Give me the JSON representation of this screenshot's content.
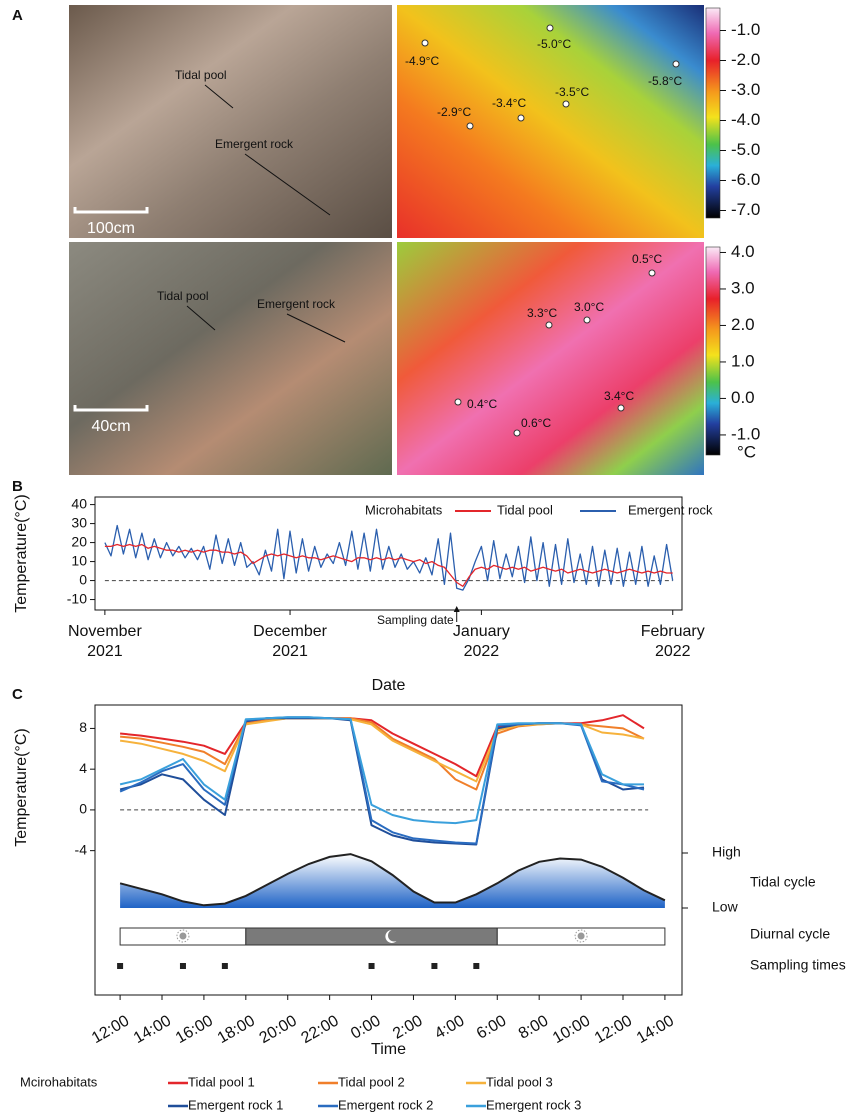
{
  "panel_a": {
    "label": "A",
    "photo_top": {
      "labels": [
        "Tidal pool",
        "Emergent rock"
      ],
      "scale": "100cm"
    },
    "thermal_top": {
      "points": [
        "-4.9°C",
        "-5.0°C",
        "-5.8°C",
        "-2.9°C",
        "-3.4°C",
        "-3.5°C"
      ],
      "colorbar": {
        "lim": [
          -7.25,
          -0.25
        ],
        "ticks": [
          {
            "value": -1,
            "label": "-1.0"
          },
          {
            "value": -2,
            "label": "-2.0"
          },
          {
            "value": -3,
            "label": "-3.0"
          },
          {
            "value": -4,
            "label": "-4.0"
          },
          {
            "value": -5,
            "label": "-5.0"
          },
          {
            "value": -6,
            "label": "-6.0"
          },
          {
            "value": -7,
            "label": "-7.0"
          }
        ]
      }
    },
    "photo_bottom": {
      "labels": [
        "Tidal pool",
        "Emergent rock"
      ],
      "scale": "40cm"
    },
    "thermal_bottom": {
      "points": [
        "0.5°C",
        "3.3°C",
        "3.0°C",
        "0.4°C",
        "0.6°C",
        "3.4°C"
      ],
      "colorbar": {
        "lim": [
          -1.55,
          4.15
        ],
        "unit": "°C",
        "ticks": [
          {
            "value": 4,
            "label": "4.0"
          },
          {
            "value": 3,
            "label": "3.0"
          },
          {
            "value": 2,
            "label": "2.0"
          },
          {
            "value": 1,
            "label": "1.0"
          },
          {
            "value": 0,
            "label": "0.0"
          },
          {
            "value": -1,
            "label": "-1.0"
          }
        ]
      }
    }
  },
  "chart_data": [
    {
      "type": "line",
      "panel": "B",
      "xlabel": "Date",
      "ylabel": "Temperature(°C)",
      "xlim": [
        -1.6,
        93.5
      ],
      "ylim": [
        -15.5,
        44
      ],
      "xticks": [
        {
          "value": 0,
          "label": "November 2021"
        },
        {
          "value": 30,
          "label": "December 2021"
        },
        {
          "value": 61,
          "label": "January 2022"
        },
        {
          "value": 92,
          "label": "February 2022"
        }
      ],
      "yticks": [
        -10,
        0,
        10,
        20,
        30,
        40
      ],
      "reference_line": 0,
      "annotation": {
        "text": "Sampling date",
        "x": 57
      },
      "legend_title": "Microhabitats",
      "legend": "top-right",
      "x": [
        0,
        1,
        2,
        3,
        4,
        5,
        6,
        7,
        8,
        9,
        10,
        11,
        12,
        13,
        14,
        15,
        16,
        17,
        18,
        19,
        20,
        21,
        22,
        23,
        24,
        25,
        26,
        27,
        28,
        29,
        30,
        31,
        32,
        33,
        34,
        35,
        36,
        37,
        38,
        39,
        40,
        41,
        42,
        43,
        44,
        45,
        46,
        47,
        48,
        49,
        50,
        51,
        52,
        53,
        54,
        55,
        56,
        57,
        58,
        59,
        60,
        61,
        62,
        63,
        64,
        65,
        66,
        67,
        68,
        69,
        70,
        71,
        72,
        73,
        74,
        75,
        76,
        77,
        78,
        79,
        80,
        81,
        82,
        83,
        84,
        85,
        86,
        87,
        88,
        89,
        90,
        91,
        92
      ],
      "series": [
        {
          "name": "Emergent rock",
          "color": "#2b5fae",
          "values": [
            20,
            13,
            29,
            14,
            27,
            12,
            25,
            11,
            22,
            12,
            20,
            13,
            18,
            12,
            17,
            11,
            18,
            6,
            24,
            9,
            22,
            8,
            20,
            7,
            10,
            3,
            16,
            5,
            27,
            1,
            26,
            4,
            22,
            5,
            18,
            7,
            14,
            9,
            20,
            8,
            26,
            6,
            25,
            5,
            27,
            6,
            18,
            7,
            14,
            6,
            10,
            4,
            12,
            3,
            22,
            -2,
            25,
            -4,
            -5,
            1,
            10,
            18,
            0,
            21,
            1,
            14,
            2,
            18,
            -1,
            23,
            0,
            20,
            -3,
            19,
            -2,
            22,
            -1,
            14,
            -2,
            18,
            -3,
            16,
            -2,
            17,
            -3,
            15,
            -2,
            18,
            -3,
            13,
            -2,
            19,
            0
          ]
        },
        {
          "name": "Tidal pool",
          "color": "#e3262b",
          "values": [
            18,
            18,
            19,
            18,
            19,
            18,
            19,
            17,
            18,
            17,
            16,
            16,
            15,
            16,
            15,
            16,
            15,
            16,
            16,
            15,
            15,
            14,
            15,
            13,
            9,
            11,
            13,
            14,
            13,
            14,
            13,
            12,
            13,
            12,
            12,
            11,
            12,
            13,
            12,
            11,
            10,
            12,
            12,
            11,
            12,
            11,
            12,
            11,
            12,
            11,
            10,
            11,
            9,
            10,
            8,
            7,
            3,
            -1,
            -3,
            2,
            6,
            7,
            6,
            8,
            7,
            6,
            7,
            6,
            7,
            5,
            6,
            7,
            6,
            5,
            6,
            4,
            5,
            6,
            5,
            4,
            5,
            6,
            5,
            4,
            5,
            6,
            5,
            4,
            5,
            4,
            5,
            4,
            4
          ]
        }
      ]
    },
    {
      "type": "line",
      "panel": "C",
      "xlabel": "Time",
      "ylabel": "Temperature(°C)",
      "xlim": [
        -0.1,
        26.1
      ],
      "ylim": [
        -5.9,
        10.3
      ],
      "xticks": [
        {
          "value": 0,
          "label": "12:00"
        },
        {
          "value": 2,
          "label": "14:00"
        },
        {
          "value": 4,
          "label": "16:00"
        },
        {
          "value": 6,
          "label": "18:00"
        },
        {
          "value": 8,
          "label": "20:00"
        },
        {
          "value": 10,
          "label": "22:00"
        },
        {
          "value": 12,
          "label": "0:00"
        },
        {
          "value": 14,
          "label": "2:00"
        },
        {
          "value": 16,
          "label": "4:00"
        },
        {
          "value": 18,
          "label": "6:00"
        },
        {
          "value": 20,
          "label": "8:00"
        },
        {
          "value": 22,
          "label": "10:00"
        },
        {
          "value": 24,
          "label": "12:00"
        },
        {
          "value": 26,
          "label": "14:00"
        }
      ],
      "yticks": [
        -4,
        0,
        4,
        8
      ],
      "reference_line": 0,
      "legend_title": "Mcirohabitats",
      "legend": "bottom",
      "x": [
        0,
        1,
        2,
        3,
        4,
        5,
        6,
        7,
        8,
        9,
        10,
        11,
        12,
        13,
        14,
        15,
        16,
        17,
        18,
        19,
        20,
        21,
        22,
        23,
        24,
        25,
        26
      ],
      "series": [
        {
          "name": "Tidal pool 1",
          "color": "#e3262b",
          "values": [
            7.5,
            7.3,
            7.0,
            6.7,
            6.3,
            5.5,
            8.6,
            8.8,
            9.0,
            9.0,
            9.0,
            9.0,
            8.8,
            7.5,
            6.5,
            5.5,
            4.5,
            3.3,
            8.2,
            8.4,
            8.5,
            8.5,
            8.5,
            8.8,
            9.3,
            8.0,
            null
          ]
        },
        {
          "name": "Tidal pool 2",
          "color": "#f07f2a",
          "values": [
            7.2,
            7.0,
            6.6,
            6.2,
            5.7,
            4.5,
            8.5,
            8.8,
            9.0,
            9.0,
            9.0,
            9.0,
            8.6,
            7.0,
            6.0,
            5.0,
            3.0,
            2.0,
            7.5,
            8.2,
            8.4,
            8.5,
            8.4,
            8.2,
            8.0,
            7.0,
            null
          ]
        },
        {
          "name": "Tidal pool 3",
          "color": "#f6b23c",
          "values": [
            6.8,
            6.5,
            6.0,
            5.5,
            4.8,
            3.8,
            8.4,
            8.7,
            9.0,
            9.0,
            9.0,
            8.9,
            8.4,
            6.8,
            5.8,
            4.8,
            3.8,
            2.8,
            7.8,
            8.3,
            8.4,
            8.5,
            8.4,
            7.6,
            7.4,
            7.0,
            null
          ]
        },
        {
          "name": "Emergent rock 1",
          "color": "#1f4e9a",
          "values": [
            2.0,
            2.5,
            3.5,
            3.0,
            1.0,
            -0.5,
            8.7,
            9.0,
            9.0,
            9.0,
            9.0,
            8.8,
            -1.5,
            -2.5,
            -3.0,
            -3.2,
            -3.3,
            -3.4,
            8.0,
            8.4,
            8.5,
            8.5,
            8.4,
            3.0,
            2.0,
            2.2,
            null
          ]
        },
        {
          "name": "Emergent rock 2",
          "color": "#2a6cc0",
          "values": [
            1.8,
            2.7,
            3.8,
            4.5,
            2.0,
            0.5,
            8.8,
            9.0,
            9.1,
            9.1,
            9.0,
            8.9,
            -1.0,
            -2.2,
            -2.8,
            -3.0,
            -3.2,
            -3.3,
            8.3,
            8.4,
            8.5,
            8.5,
            8.3,
            2.8,
            2.5,
            2.0,
            null
          ]
        },
        {
          "name": "Emergent rock 3",
          "color": "#3aa0dc",
          "values": [
            2.5,
            3.0,
            4.0,
            5.0,
            2.5,
            1.0,
            8.9,
            9.0,
            9.1,
            9.1,
            9.0,
            8.9,
            0.5,
            -0.5,
            -1.0,
            -1.2,
            -1.3,
            -1.0,
            8.4,
            8.5,
            8.5,
            8.5,
            8.4,
            3.5,
            2.5,
            2.5,
            null
          ]
        }
      ],
      "tidal_cycle": {
        "label": "Tidal cycle",
        "ylim": [
          0,
          1
        ],
        "yticks": [
          {
            "value": 1,
            "label": "High"
          },
          {
            "value": 0,
            "label": "Low"
          }
        ],
        "values": [
          0.45,
          0.35,
          0.25,
          0.12,
          0.05,
          0.08,
          0.22,
          0.42,
          0.62,
          0.8,
          0.93,
          0.98,
          0.85,
          0.6,
          0.3,
          0.1,
          0.1,
          0.25,
          0.45,
          0.68,
          0.84,
          0.9,
          0.88,
          0.75,
          0.55,
          0.32,
          0.14
        ]
      },
      "diurnal_cycle": {
        "label": "Diurnal cycle",
        "span": [
          0,
          26
        ],
        "night": [
          6,
          18
        ]
      },
      "sampling_times": {
        "label": "Sampling times",
        "values": [
          0,
          3,
          5,
          12,
          15,
          17
        ]
      }
    }
  ]
}
